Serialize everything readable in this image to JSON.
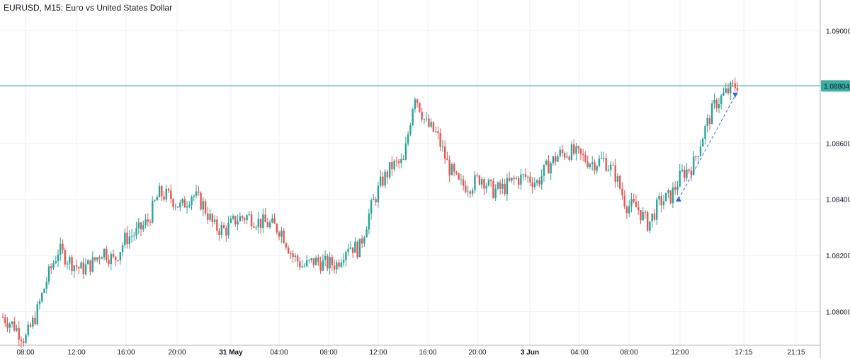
{
  "header": {
    "title": "EURUSD, M15: Euro vs United States Dollar"
  },
  "colors": {
    "up": "#26a69a",
    "down": "#ef5350",
    "grid": "#eceff3",
    "level": "#3aaea3",
    "arrow": "#2962ff",
    "axis": "#b2b5be"
  },
  "chart_data": {
    "type": "candlestick",
    "title": "EURUSD, M15: Euro vs United States Dollar",
    "ylim": [
      1.0788,
      1.0911
    ],
    "y_ticks": [
      "1.09000",
      "1.08600",
      "1.08400",
      "1.08200",
      "1.08000"
    ],
    "y_tick_values": [
      1.09,
      1.086,
      1.084,
      1.082,
      1.08
    ],
    "x_ticks": [
      "08:00",
      "12:00",
      "16:00",
      "20:00",
      "31 May",
      "04:00",
      "08:00",
      "12:00",
      "16:00",
      "20:00",
      "3 Jun",
      "04:00",
      "08:00",
      "12:00",
      "17:15",
      "21:15"
    ],
    "x_tick_bold": [
      false,
      false,
      false,
      false,
      true,
      false,
      false,
      false,
      false,
      false,
      true,
      false,
      false,
      false,
      false,
      false
    ],
    "level": {
      "value": 1.08804,
      "label": "1.08804"
    },
    "arrow": {
      "from": {
        "time": "12:00",
        "price": 1.084
      },
      "to": {
        "time": "17:15",
        "price": 1.0877
      }
    },
    "close_path": [
      1.0798,
      1.0795,
      1.079,
      1.0799,
      1.0812,
      1.0822,
      1.0818,
      1.0815,
      1.0817,
      1.0822,
      1.0818,
      1.0826,
      1.0828,
      1.0832,
      1.0842,
      1.0841,
      1.0837,
      1.0842,
      1.0838,
      1.083,
      1.0829,
      1.0833,
      1.0834,
      1.0832,
      1.0831,
      1.0829,
      1.082,
      1.0816,
      1.0818,
      1.0817,
      1.0817,
      1.0824,
      1.0822,
      1.0836,
      1.0846,
      1.0852,
      1.0853,
      1.0878,
      1.0867,
      1.0863,
      1.0852,
      1.0845,
      1.0845,
      1.0848,
      1.0843,
      1.0844,
      1.0847,
      1.0848,
      1.0846,
      1.0852,
      1.0856,
      1.0857,
      1.0855,
      1.0853,
      1.0854,
      1.0849,
      1.0838,
      1.0837,
      1.0831,
      1.0839,
      1.0841,
      1.0849,
      1.0852,
      1.0864,
      1.0874,
      1.0878,
      1.0881
    ],
    "candles_count": 320
  }
}
